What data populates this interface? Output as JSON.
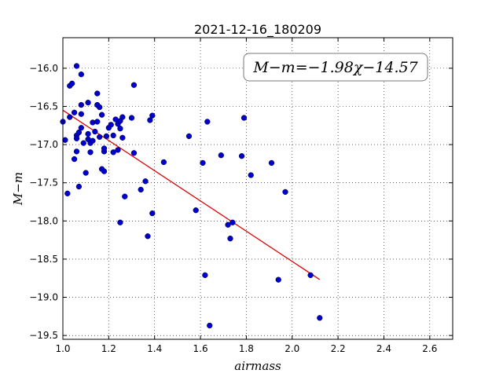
{
  "chart_data": {
    "type": "scatter",
    "title": "2021-12-16_180209",
    "xlabel": "airmass",
    "ylabel": "M−m",
    "xlim": [
      1.0,
      2.7
    ],
    "ylim": [
      -19.55,
      -15.6
    ],
    "xticks": [
      1.0,
      1.2,
      1.4,
      1.6,
      1.8,
      2.0,
      2.2,
      2.4,
      2.6
    ],
    "xtick_labels": [
      "1.0",
      "1.2",
      "1.4",
      "1.6",
      "1.8",
      "2.0",
      "2.2",
      "2.4",
      "2.6"
    ],
    "yticks": [
      -16.0,
      -16.5,
      -17.0,
      -17.5,
      -18.0,
      -18.5,
      -19.0,
      -19.5
    ],
    "ytick_labels": [
      "−16.0",
      "−16.5",
      "−17.0",
      "−17.5",
      "−18.0",
      "−18.5",
      "−19.0",
      "−19.5"
    ],
    "grid": true,
    "annotation": "M−m=−1.98χ−14.57",
    "annotation_position": "top-right",
    "point_color": "#0000cc",
    "fit_color": "#dd0000",
    "fit_line": {
      "slope": -1.98,
      "intercept": -14.57,
      "x": [
        1.0,
        2.12
      ]
    },
    "series": [
      {
        "points": [
          [
            1.0,
            -16.7
          ],
          [
            1.01,
            -16.94
          ],
          [
            1.02,
            -17.64
          ],
          [
            1.03,
            -16.64
          ],
          [
            1.03,
            -16.23
          ],
          [
            1.04,
            -16.2
          ],
          [
            1.05,
            -16.58
          ],
          [
            1.05,
            -17.19
          ],
          [
            1.06,
            -17.09
          ],
          [
            1.06,
            -16.88
          ],
          [
            1.06,
            -16.92
          ],
          [
            1.06,
            -15.97
          ],
          [
            1.07,
            -16.84
          ],
          [
            1.07,
            -17.55
          ],
          [
            1.08,
            -16.08
          ],
          [
            1.08,
            -16.48
          ],
          [
            1.08,
            -16.6
          ],
          [
            1.08,
            -16.78
          ],
          [
            1.09,
            -16.98
          ],
          [
            1.1,
            -17.37
          ],
          [
            1.11,
            -16.93
          ],
          [
            1.11,
            -16.86
          ],
          [
            1.11,
            -16.45
          ],
          [
            1.12,
            -17.1
          ],
          [
            1.12,
            -16.98
          ],
          [
            1.13,
            -16.71
          ],
          [
            1.13,
            -16.95
          ],
          [
            1.14,
            -16.83
          ],
          [
            1.15,
            -16.33
          ],
          [
            1.15,
            -16.48
          ],
          [
            1.15,
            -16.7
          ],
          [
            1.16,
            -16.51
          ],
          [
            1.16,
            -16.9
          ],
          [
            1.17,
            -16.61
          ],
          [
            1.17,
            -17.32
          ],
          [
            1.18,
            -17.09
          ],
          [
            1.18,
            -17.35
          ],
          [
            1.18,
            -17.05
          ],
          [
            1.19,
            -16.89
          ],
          [
            1.2,
            -16.78
          ],
          [
            1.21,
            -16.74
          ],
          [
            1.22,
            -17.1
          ],
          [
            1.22,
            -16.88
          ],
          [
            1.23,
            -16.67
          ],
          [
            1.24,
            -16.73
          ],
          [
            1.24,
            -17.07
          ],
          [
            1.25,
            -16.69
          ],
          [
            1.25,
            -16.79
          ],
          [
            1.25,
            -18.02
          ],
          [
            1.26,
            -16.64
          ],
          [
            1.26,
            -16.91
          ],
          [
            1.27,
            -17.68
          ],
          [
            1.3,
            -16.65
          ],
          [
            1.31,
            -16.22
          ],
          [
            1.31,
            -17.11
          ],
          [
            1.34,
            -17.59
          ],
          [
            1.36,
            -17.48
          ],
          [
            1.37,
            -18.2
          ],
          [
            1.38,
            -16.68
          ],
          [
            1.39,
            -16.62
          ],
          [
            1.39,
            -17.9
          ],
          [
            1.44,
            -17.23
          ],
          [
            1.55,
            -16.89
          ],
          [
            1.58,
            -17.86
          ],
          [
            1.61,
            -17.24
          ],
          [
            1.62,
            -18.71
          ],
          [
            1.63,
            -16.7
          ],
          [
            1.64,
            -19.37
          ],
          [
            1.69,
            -17.14
          ],
          [
            1.72,
            -18.05
          ],
          [
            1.73,
            -18.23
          ],
          [
            1.74,
            -18.02
          ],
          [
            1.78,
            -17.15
          ],
          [
            1.79,
            -16.65
          ],
          [
            1.82,
            -17.4
          ],
          [
            1.91,
            -17.24
          ],
          [
            1.94,
            -18.77
          ],
          [
            1.97,
            -17.62
          ],
          [
            2.08,
            -18.71
          ],
          [
            2.12,
            -19.27
          ]
        ]
      }
    ]
  }
}
